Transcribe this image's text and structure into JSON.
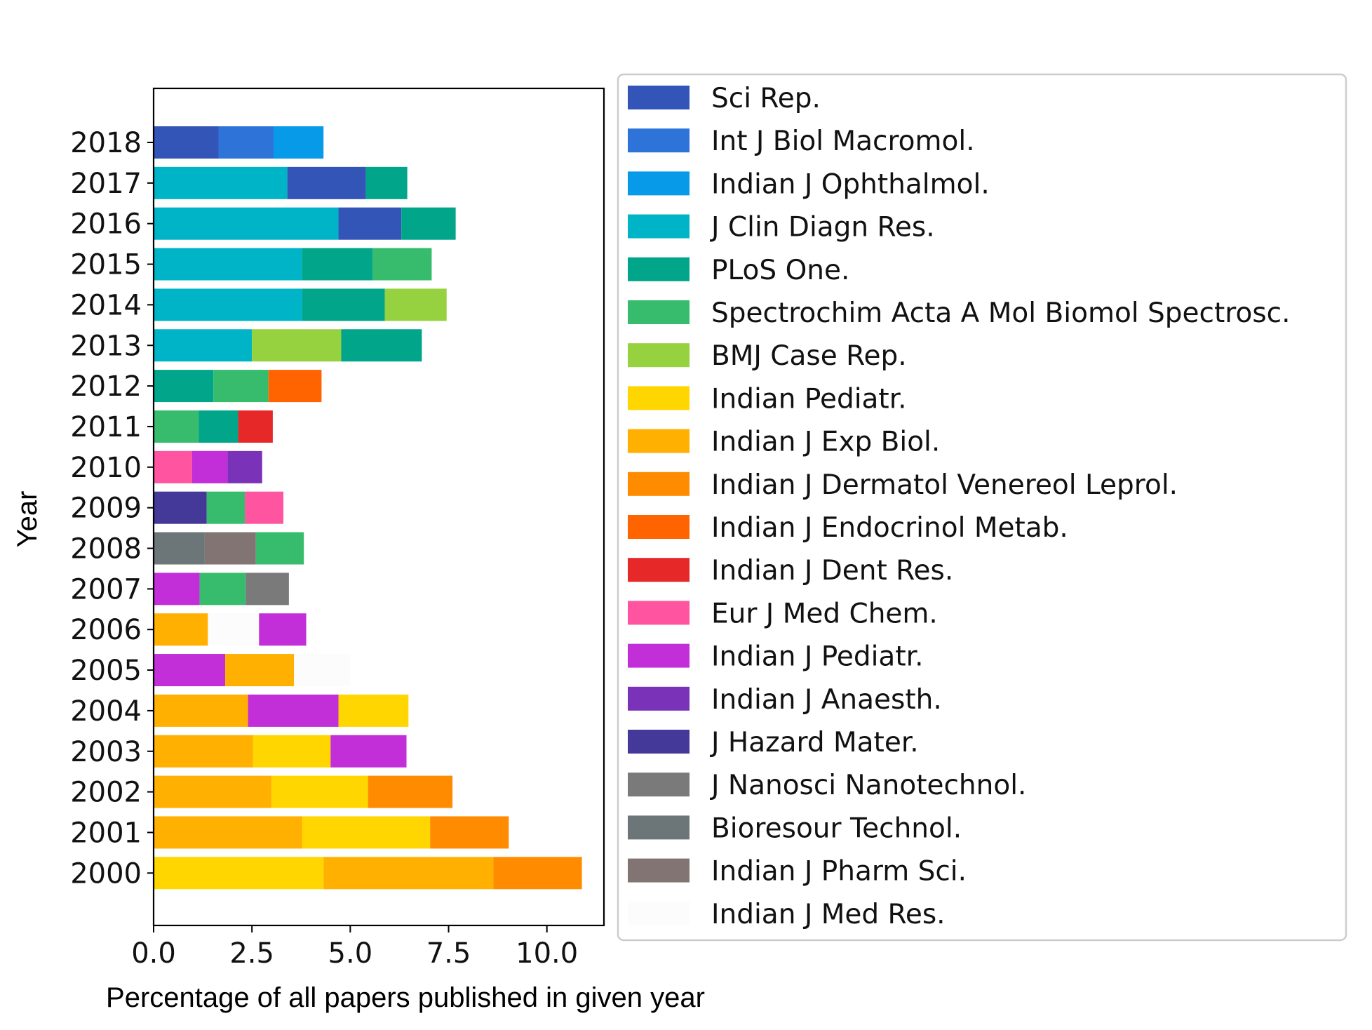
{
  "chart_data": {
    "type": "bar",
    "orientation": "horizontal",
    "stacked": true,
    "title": "",
    "xlabel": "Percentage of all papers published in given year",
    "ylabel": "Year",
    "xlim": [
      0,
      11.45
    ],
    "xticks": [
      0,
      2.5,
      5,
      7.5,
      10
    ],
    "xtick_labels": [
      "0.0",
      "2.5",
      "5.0",
      "7.5",
      "10.0"
    ],
    "categories": [
      "2018",
      "2017",
      "2016",
      "2015",
      "2014",
      "2013",
      "2012",
      "2011",
      "2010",
      "2009",
      "2008",
      "2007",
      "2006",
      "2005",
      "2004",
      "2003",
      "2002",
      "2001",
      "2000"
    ],
    "grid": false,
    "legend_position": "right",
    "legend": [
      {
        "name": "Sci Rep.",
        "color": "#3355b8"
      },
      {
        "name": "Int J Biol Macromol.",
        "color": "#2e74d8"
      },
      {
        "name": "Indian J Ophthalmol.",
        "color": "#069ae8"
      },
      {
        "name": "J Clin Diagn Res.",
        "color": "#00b4c8"
      },
      {
        "name": "PLoS One.",
        "color": "#00a58a"
      },
      {
        "name": "Spectrochim Acta A Mol Biomol Spectrosc.",
        "color": "#36bc6c"
      },
      {
        "name": "BMJ Case Rep.",
        "color": "#96d140"
      },
      {
        "name": "Indian Pediatr.",
        "color": "#ffd600"
      },
      {
        "name": "Indian J Exp Biol.",
        "color": "#ffb000"
      },
      {
        "name": "Indian J Dermatol Venereol Leprol.",
        "color": "#ff8c00"
      },
      {
        "name": "Indian J Endocrinol Metab.",
        "color": "#ff6400"
      },
      {
        "name": "Indian J Dent Res.",
        "color": "#e62828"
      },
      {
        "name": "Eur J Med Chem.",
        "color": "#ff55a0"
      },
      {
        "name": "Indian J Pediatr.",
        "color": "#c22ed8"
      },
      {
        "name": "Indian J Anaesth.",
        "color": "#7a32b8"
      },
      {
        "name": "J Hazard Mater.",
        "color": "#443898"
      },
      {
        "name": "J Nanosci Nanotechnol.",
        "color": "#7a7a7a"
      },
      {
        "name": "Bioresour Technol.",
        "color": "#6c7678"
      },
      {
        "name": "Indian J Pharm Sci.",
        "color": "#827472"
      },
      {
        "name": "Indian J Med Res.",
        "color": "#fcfcfc"
      }
    ],
    "bars": [
      {
        "year": "2018",
        "segments": [
          {
            "series": "Sci Rep.",
            "value": 1.65
          },
          {
            "series": "Int J Biol Macromol.",
            "value": 1.4
          },
          {
            "series": "Indian J Ophthalmol.",
            "value": 1.27
          }
        ]
      },
      {
        "year": "2017",
        "segments": [
          {
            "series": "J Clin Diagn Res.",
            "value": 3.4
          },
          {
            "series": "Sci Rep.",
            "value": 2.0
          },
          {
            "series": "PLoS One.",
            "value": 1.05
          }
        ]
      },
      {
        "year": "2016",
        "segments": [
          {
            "series": "J Clin Diagn Res.",
            "value": 4.7
          },
          {
            "series": "Sci Rep.",
            "value": 1.6
          },
          {
            "series": "PLoS One.",
            "value": 1.38
          }
        ]
      },
      {
        "year": "2015",
        "segments": [
          {
            "series": "J Clin Diagn Res.",
            "value": 3.77
          },
          {
            "series": "PLoS One.",
            "value": 1.8
          },
          {
            "series": "Spectrochim Acta A Mol Biomol Spectrosc.",
            "value": 1.5
          }
        ]
      },
      {
        "year": "2014",
        "segments": [
          {
            "series": "J Clin Diagn Res.",
            "value": 3.78
          },
          {
            "series": "PLoS One.",
            "value": 2.1
          },
          {
            "series": "BMJ Case Rep.",
            "value": 1.57
          }
        ]
      },
      {
        "year": "2013",
        "segments": [
          {
            "series": "J Clin Diagn Res.",
            "value": 2.5
          },
          {
            "series": "BMJ Case Rep.",
            "value": 2.27
          },
          {
            "series": "PLoS One.",
            "value": 2.05
          }
        ]
      },
      {
        "year": "2012",
        "segments": [
          {
            "series": "PLoS One.",
            "value": 1.52
          },
          {
            "series": "Spectrochim Acta A Mol Biomol Spectrosc.",
            "value": 1.4
          },
          {
            "series": "Indian J Endocrinol Metab.",
            "value": 1.35
          }
        ]
      },
      {
        "year": "2011",
        "segments": [
          {
            "series": "Spectrochim Acta A Mol Biomol Spectrosc.",
            "value": 1.15
          },
          {
            "series": "PLoS One.",
            "value": 1.0
          },
          {
            "series": "Indian J Dent Res.",
            "value": 0.88
          }
        ]
      },
      {
        "year": "2010",
        "segments": [
          {
            "series": "Eur J Med Chem.",
            "value": 0.98
          },
          {
            "series": "Indian J Pediatr.",
            "value": 0.9
          },
          {
            "series": "Indian J Anaesth.",
            "value": 0.88
          }
        ]
      },
      {
        "year": "2009",
        "segments": [
          {
            "series": "J Hazard Mater.",
            "value": 1.35
          },
          {
            "series": "Spectrochim Acta A Mol Biomol Spectrosc.",
            "value": 0.97
          },
          {
            "series": "Eur J Med Chem.",
            "value": 0.98
          }
        ]
      },
      {
        "year": "2008",
        "segments": [
          {
            "series": "Bioresour Technol.",
            "value": 1.3
          },
          {
            "series": "Indian J Pharm Sci.",
            "value": 1.3
          },
          {
            "series": "Spectrochim Acta A Mol Biomol Spectrosc.",
            "value": 1.22
          }
        ]
      },
      {
        "year": "2007",
        "segments": [
          {
            "series": "Indian J Pediatr.",
            "value": 1.17
          },
          {
            "series": "Spectrochim Acta A Mol Biomol Spectrosc.",
            "value": 1.17
          },
          {
            "series": "J Nanosci Nanotechnol.",
            "value": 1.1
          }
        ]
      },
      {
        "year": "2006",
        "segments": [
          {
            "series": "Indian J Exp Biol.",
            "value": 1.38
          },
          {
            "series": "Indian J Med Res.",
            "value": 1.3
          },
          {
            "series": "Indian J Pediatr.",
            "value": 1.2
          }
        ]
      },
      {
        "year": "2005",
        "segments": [
          {
            "series": "Indian J Pediatr.",
            "value": 1.82
          },
          {
            "series": "Indian J Exp Biol.",
            "value": 1.75
          },
          {
            "series": "Indian J Med Res.",
            "value": 1.43
          }
        ]
      },
      {
        "year": "2004",
        "segments": [
          {
            "series": "Indian J Exp Biol.",
            "value": 2.4
          },
          {
            "series": "Indian J Pediatr.",
            "value": 2.3
          },
          {
            "series": "Indian Pediatr.",
            "value": 1.78
          }
        ]
      },
      {
        "year": "2003",
        "segments": [
          {
            "series": "Indian J Exp Biol.",
            "value": 2.53
          },
          {
            "series": "Indian Pediatr.",
            "value": 1.97
          },
          {
            "series": "Indian J Pediatr.",
            "value": 1.93
          }
        ]
      },
      {
        "year": "2002",
        "segments": [
          {
            "series": "Indian J Exp Biol.",
            "value": 3.0
          },
          {
            "series": "Indian Pediatr.",
            "value": 2.45
          },
          {
            "series": "Indian J Dermatol Venereol Leprol.",
            "value": 2.15
          }
        ]
      },
      {
        "year": "2001",
        "segments": [
          {
            "series": "Indian J Exp Biol.",
            "value": 3.78
          },
          {
            "series": "Indian Pediatr.",
            "value": 3.25
          },
          {
            "series": "Indian J Dermatol Venereol Leprol.",
            "value": 2.0
          }
        ]
      },
      {
        "year": "2000",
        "segments": [
          {
            "series": "Indian Pediatr.",
            "value": 4.32
          },
          {
            "series": "Indian J Exp Biol.",
            "value": 4.32
          },
          {
            "series": "Indian J Dermatol Venereol Leprol.",
            "value": 2.25
          }
        ]
      }
    ]
  }
}
